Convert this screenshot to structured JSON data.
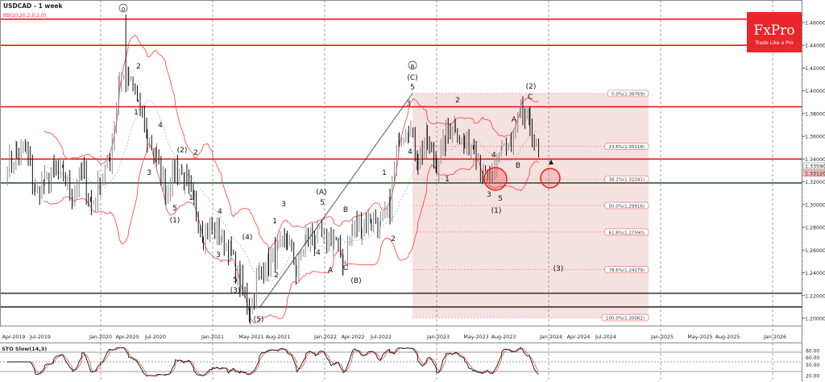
{
  "header": {
    "symbol_title": "USDCAD - 1 week",
    "indicator": "BB(20,20,2.0,2.0)"
  },
  "logo": {
    "brand": "FxPro",
    "tagline": "Trade Like a Pro",
    "color": "#e8262b"
  },
  "price_axis": {
    "ticks": [
      "1.46000",
      "1.44000",
      "1.42000",
      "1.40000",
      "1.38000",
      "1.36000",
      "1.34000",
      "1.32000",
      "1.30000",
      "1.28000",
      "1.26000",
      "1.24000",
      "1.22000",
      "1.20000"
    ],
    "bid_label": "1.33590",
    "ask_label": "1.33120"
  },
  "time_axis": {
    "ticks": [
      "Apr-2019",
      "Jul-2019",
      "Jan-2020",
      "Apr-2020",
      "Jul-2020",
      "Jan-2021",
      "May-2021",
      "Aug-2021",
      "Jan-2022",
      "Apr-2022",
      "Jul-2022",
      "Jan-2023",
      "May-2023",
      "Aug-2023",
      "Jan-2024",
      "Apr-2024",
      "Jul-2024",
      "Jan-2025",
      "May-2025",
      "Aug-2025",
      "Jan-2026"
    ]
  },
  "stochastic": {
    "title": "STO Slow(14,3)",
    "levels": [
      "80.00",
      "60.00",
      "50.00",
      "20.00"
    ]
  },
  "fibonacci": [
    {
      "label": "0.0%(1.39769)",
      "price": 1.39769
    },
    {
      "label": "23.6%(1.35118)",
      "price": 1.35118
    },
    {
      "label": "38.2%(1.32241)",
      "price": 1.32241
    },
    {
      "label": "50.0%(1.29916)",
      "price": 1.29916
    },
    {
      "label": "61.8%(1.27590)",
      "price": 1.2759
    },
    {
      "label": "78.6%(1.24279)",
      "price": 1.24279
    },
    {
      "label": "100.0%(1.20062)",
      "price": 1.20062
    }
  ],
  "wave_labels": [
    "0",
    "2",
    "1",
    "4",
    "3",
    "(2)",
    "2",
    "5",
    "(1)",
    "1",
    "4",
    "3",
    "(4)",
    "5",
    "(3)",
    "(5)",
    "1",
    "3",
    "2",
    "(A)",
    "5",
    "4",
    "A",
    "B",
    "C",
    "(B)",
    "1",
    "2",
    "B",
    "(C)",
    "5",
    "3",
    "4",
    "2",
    "1",
    "4",
    "3",
    "5",
    "(1)",
    "A",
    "B",
    "(2)",
    "C",
    "(3)"
  ],
  "colors": {
    "resistance": "#ff0000",
    "support": "#1e4d1e",
    "black_level": "#222222",
    "bands": "#ff3b3b",
    "fib_zone": "#f6e1e1"
  },
  "chart_data": {
    "type": "candlestick",
    "symbol": "USDCAD",
    "timeframe": "1 week",
    "ylim": [
      1.19,
      1.47
    ],
    "horizontal_levels": {
      "red": [
        1.463,
        1.44,
        1.386,
        1.34
      ],
      "green": [
        1.319
      ],
      "black": [
        1.222,
        1.21
      ]
    },
    "approx_monthly_close": {
      "months": [
        "2019-03",
        "2019-04",
        "2019-05",
        "2019-06",
        "2019-07",
        "2019-08",
        "2019-09",
        "2019-10",
        "2019-11",
        "2019-12",
        "2020-01",
        "2020-02",
        "2020-03",
        "2020-04",
        "2020-05",
        "2020-06",
        "2020-07",
        "2020-08",
        "2020-09",
        "2020-10",
        "2020-11",
        "2020-12",
        "2021-01",
        "2021-02",
        "2021-03",
        "2021-04",
        "2021-05",
        "2021-06",
        "2021-07",
        "2021-08",
        "2021-09",
        "2021-10",
        "2021-11",
        "2021-12",
        "2022-01",
        "2022-02",
        "2022-03",
        "2022-04",
        "2022-05",
        "2022-06",
        "2022-07",
        "2022-08",
        "2022-09",
        "2022-10",
        "2022-11",
        "2022-12",
        "2023-01",
        "2023-02",
        "2023-03",
        "2023-04",
        "2023-05",
        "2023-06",
        "2023-07",
        "2023-08",
        "2023-09",
        "2023-10",
        "2023-11",
        "2023-12"
      ],
      "values": [
        1.335,
        1.345,
        1.35,
        1.31,
        1.32,
        1.33,
        1.325,
        1.31,
        1.33,
        1.3,
        1.32,
        1.34,
        1.41,
        1.41,
        1.39,
        1.36,
        1.34,
        1.31,
        1.335,
        1.32,
        1.3,
        1.275,
        1.28,
        1.27,
        1.255,
        1.23,
        1.21,
        1.24,
        1.25,
        1.26,
        1.27,
        1.24,
        1.27,
        1.27,
        1.27,
        1.27,
        1.25,
        1.28,
        1.28,
        1.29,
        1.28,
        1.3,
        1.36,
        1.37,
        1.34,
        1.355,
        1.335,
        1.36,
        1.37,
        1.35,
        1.355,
        1.325,
        1.32,
        1.355,
        1.35,
        1.38,
        1.37,
        1.335
      ]
    }
  }
}
